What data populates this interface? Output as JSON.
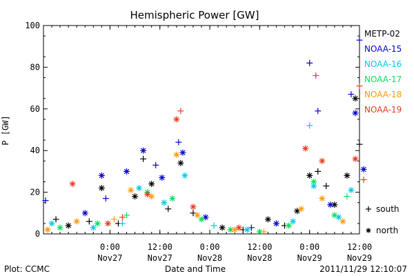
{
  "chart_data": {
    "type": "scatter",
    "title": "Hemispheric Power [GW]",
    "ylabel": "P [GW]",
    "xlabel": "Date and Time",
    "ylim": [
      0,
      100
    ],
    "xlim": [
      "2011-11-26 08:00",
      "2011-11-29 12:00"
    ],
    "grid": false,
    "legend_placement": "right",
    "y_ticks": [
      {
        "value": 0,
        "label": "0"
      },
      {
        "value": 20,
        "label": "20"
      },
      {
        "value": 40,
        "label": "40"
      },
      {
        "value": 60,
        "label": "60"
      },
      {
        "value": 80,
        "label": "80"
      },
      {
        "value": 100,
        "label": "100"
      }
    ],
    "x_ticks": [
      {
        "value": "2011-11-27 00:00",
        "time": "0:00",
        "date": "Nov27"
      },
      {
        "value": "2011-11-27 12:00",
        "time": "12:00",
        "date": "Nov27"
      },
      {
        "value": "2011-11-28 00:00",
        "time": "0:00",
        "date": "Nov28"
      },
      {
        "value": "2011-11-28 12:00",
        "time": "12:00",
        "date": "Nov28"
      },
      {
        "value": "2011-11-29 00:00",
        "time": "0:00",
        "date": "Nov29"
      },
      {
        "value": "2011-11-29 12:00",
        "time": "12:00",
        "date": "Nov29"
      }
    ],
    "marker_legend": [
      {
        "symbol": "+",
        "label": "south"
      },
      {
        "symbol": "*",
        "label": "north"
      }
    ],
    "series": [
      {
        "name": "METP-02",
        "color": "#000000",
        "points": [
          {
            "x": "2011-11-26 11:00",
            "y": 7,
            "hemi": "south"
          },
          {
            "x": "2011-11-26 14:00",
            "y": 4,
            "hemi": "north"
          },
          {
            "x": "2011-11-26 19:00",
            "y": 6,
            "hemi": "south"
          },
          {
            "x": "2011-11-26 22:00",
            "y": 22,
            "hemi": "north"
          },
          {
            "x": "2011-11-27 02:00",
            "y": 5,
            "hemi": "south"
          },
          {
            "x": "2011-11-27 06:00",
            "y": 18,
            "hemi": "north"
          },
          {
            "x": "2011-11-27 08:00",
            "y": 36,
            "hemi": "south"
          },
          {
            "x": "2011-11-27 10:00",
            "y": 24,
            "hemi": "north"
          },
          {
            "x": "2011-11-27 14:00",
            "y": 12,
            "hemi": "south"
          },
          {
            "x": "2011-11-27 17:00",
            "y": 34,
            "hemi": "north"
          },
          {
            "x": "2011-11-27 20:00",
            "y": 10,
            "hemi": "south"
          },
          {
            "x": "2011-11-28 03:00",
            "y": 3,
            "hemi": "north"
          },
          {
            "x": "2011-11-28 08:00",
            "y": 2,
            "hemi": "south"
          },
          {
            "x": "2011-11-28 14:00",
            "y": 7,
            "hemi": "north"
          },
          {
            "x": "2011-11-28 18:00",
            "y": 4,
            "hemi": "south"
          },
          {
            "x": "2011-11-28 21:00",
            "y": 11,
            "hemi": "north"
          },
          {
            "x": "2011-11-29 00:00",
            "y": 28,
            "hemi": "north"
          },
          {
            "x": "2011-11-29 02:00",
            "y": 30,
            "hemi": "south"
          },
          {
            "x": "2011-11-29 04:00",
            "y": 23,
            "hemi": "south"
          },
          {
            "x": "2011-11-29 06:00",
            "y": 14,
            "hemi": "north"
          },
          {
            "x": "2011-11-29 09:00",
            "y": 28,
            "hemi": "north"
          },
          {
            "x": "2011-11-29 11:00",
            "y": 65,
            "hemi": "north"
          },
          {
            "x": "2011-11-29 12:00",
            "y": 43,
            "hemi": "south"
          }
        ]
      },
      {
        "name": "NOAA-15",
        "color": "#0000cd",
        "points": [
          {
            "x": "2011-11-26 08:30",
            "y": 16,
            "hemi": "south"
          },
          {
            "x": "2011-11-26 18:00",
            "y": 10,
            "hemi": "north"
          },
          {
            "x": "2011-11-26 22:00",
            "y": 28,
            "hemi": "north"
          },
          {
            "x": "2011-11-26 23:00",
            "y": 17,
            "hemi": "south"
          },
          {
            "x": "2011-11-27 04:00",
            "y": 30,
            "hemi": "north"
          },
          {
            "x": "2011-11-27 08:00",
            "y": 40,
            "hemi": "north"
          },
          {
            "x": "2011-11-27 11:00",
            "y": 33,
            "hemi": "south"
          },
          {
            "x": "2011-11-27 12:30",
            "y": 27,
            "hemi": "north"
          },
          {
            "x": "2011-11-27 16:30",
            "y": 44,
            "hemi": "south"
          },
          {
            "x": "2011-11-27 17:30",
            "y": 39,
            "hemi": "north"
          },
          {
            "x": "2011-11-27 23:00",
            "y": 8,
            "hemi": "north"
          },
          {
            "x": "2011-11-28 10:00",
            "y": 3,
            "hemi": "south"
          },
          {
            "x": "2011-11-28 16:00",
            "y": 5,
            "hemi": "north"
          },
          {
            "x": "2011-11-29 00:00",
            "y": 82,
            "hemi": "south"
          },
          {
            "x": "2011-11-29 02:00",
            "y": 59,
            "hemi": "south"
          },
          {
            "x": "2011-11-29 05:00",
            "y": 14,
            "hemi": "north"
          },
          {
            "x": "2011-11-29 10:00",
            "y": 67,
            "hemi": "south"
          },
          {
            "x": "2011-11-29 11:00",
            "y": 58,
            "hemi": "north"
          },
          {
            "x": "2011-11-29 12:00",
            "y": 93,
            "hemi": "south"
          },
          {
            "x": "2011-11-29 13:00",
            "y": 31,
            "hemi": "north"
          }
        ]
      },
      {
        "name": "NOAA-16",
        "color": "#00c8e6",
        "points": [
          {
            "x": "2011-11-26 10:00",
            "y": 5,
            "hemi": "north"
          },
          {
            "x": "2011-11-26 20:00",
            "y": 3,
            "hemi": "north"
          },
          {
            "x": "2011-11-27 03:00",
            "y": 5,
            "hemi": "south"
          },
          {
            "x": "2011-11-27 07:00",
            "y": 22,
            "hemi": "north"
          },
          {
            "x": "2011-11-27 13:00",
            "y": 15,
            "hemi": "north"
          },
          {
            "x": "2011-11-27 18:00",
            "y": 28,
            "hemi": "north"
          },
          {
            "x": "2011-11-28 01:00",
            "y": 4,
            "hemi": "south"
          },
          {
            "x": "2011-11-28 09:00",
            "y": 2,
            "hemi": "north"
          },
          {
            "x": "2011-11-28 20:00",
            "y": 6,
            "hemi": "north"
          },
          {
            "x": "2011-11-29 00:00",
            "y": 52,
            "hemi": "south"
          },
          {
            "x": "2011-11-29 01:00",
            "y": 23,
            "hemi": "north"
          },
          {
            "x": "2011-11-29 07:00",
            "y": 8,
            "hemi": "north"
          },
          {
            "x": "2011-11-29 10:00",
            "y": 21,
            "hemi": "north"
          }
        ]
      },
      {
        "name": "NOAA-17",
        "color": "#00e05a",
        "points": [
          {
            "x": "2011-11-26 12:00",
            "y": 3,
            "hemi": "north"
          },
          {
            "x": "2011-11-26 21:00",
            "y": 5,
            "hemi": "north"
          },
          {
            "x": "2011-11-27 04:00",
            "y": 9,
            "hemi": "south"
          },
          {
            "x": "2011-11-27 09:00",
            "y": 20,
            "hemi": "north"
          },
          {
            "x": "2011-11-27 15:00",
            "y": 17,
            "hemi": "north"
          },
          {
            "x": "2011-11-27 22:00",
            "y": 7,
            "hemi": "north"
          },
          {
            "x": "2011-11-28 05:00",
            "y": 2,
            "hemi": "north"
          },
          {
            "x": "2011-11-28 12:00",
            "y": 1,
            "hemi": "north"
          },
          {
            "x": "2011-11-28 19:00",
            "y": 4,
            "hemi": "north"
          },
          {
            "x": "2011-11-29 01:00",
            "y": 25,
            "hemi": "north"
          },
          {
            "x": "2011-11-29 06:00",
            "y": 9,
            "hemi": "north"
          },
          {
            "x": "2011-11-29 09:00",
            "y": 18,
            "hemi": "south"
          }
        ]
      },
      {
        "name": "NOAA-18",
        "color": "#ff9900",
        "points": [
          {
            "x": "2011-11-26 09:00",
            "y": 2,
            "hemi": "north"
          },
          {
            "x": "2011-11-26 16:00",
            "y": 6,
            "hemi": "north"
          },
          {
            "x": "2011-11-27 01:00",
            "y": 7,
            "hemi": "south"
          },
          {
            "x": "2011-11-27 05:00",
            "y": 21,
            "hemi": "north"
          },
          {
            "x": "2011-11-27 10:00",
            "y": 18,
            "hemi": "north"
          },
          {
            "x": "2011-11-27 16:00",
            "y": 38,
            "hemi": "north"
          },
          {
            "x": "2011-11-27 21:00",
            "y": 9,
            "hemi": "north"
          },
          {
            "x": "2011-11-28 06:00",
            "y": 2,
            "hemi": "north"
          },
          {
            "x": "2011-11-28 13:00",
            "y": 1,
            "hemi": "south"
          },
          {
            "x": "2011-11-28 22:00",
            "y": 12,
            "hemi": "north"
          },
          {
            "x": "2011-11-29 03:00",
            "y": 17,
            "hemi": "north"
          },
          {
            "x": "2011-11-29 08:00",
            "y": 6,
            "hemi": "north"
          }
        ]
      },
      {
        "name": "NOAA-19",
        "color": "#e8381c",
        "points": [
          {
            "x": "2011-11-26 15:00",
            "y": 24,
            "hemi": "north"
          },
          {
            "x": "2011-11-26 23:30",
            "y": 5,
            "hemi": "north"
          },
          {
            "x": "2011-11-27 03:00",
            "y": 8,
            "hemi": "south"
          },
          {
            "x": "2011-11-27 09:00",
            "y": 19,
            "hemi": "north"
          },
          {
            "x": "2011-11-27 16:00",
            "y": 55,
            "hemi": "north"
          },
          {
            "x": "2011-11-27 17:00",
            "y": 59,
            "hemi": "south"
          },
          {
            "x": "2011-11-27 20:00",
            "y": 13,
            "hemi": "north"
          },
          {
            "x": "2011-11-28 07:00",
            "y": 3,
            "hemi": "north"
          },
          {
            "x": "2011-11-28 23:00",
            "y": 41,
            "hemi": "north"
          },
          {
            "x": "2011-11-29 01:30",
            "y": 76,
            "hemi": "south"
          },
          {
            "x": "2011-11-29 03:00",
            "y": 35,
            "hemi": "north"
          },
          {
            "x": "2011-11-29 11:00",
            "y": 36,
            "hemi": "north"
          },
          {
            "x": "2011-11-29 12:00",
            "y": 71,
            "hemi": "south"
          },
          {
            "x": "2011-11-29 13:00",
            "y": 26,
            "hemi": "south"
          }
        ]
      }
    ]
  },
  "footer": {
    "plot_label": "Plot: CCMC",
    "timestamp": "2011/11/29 12:10:07"
  }
}
